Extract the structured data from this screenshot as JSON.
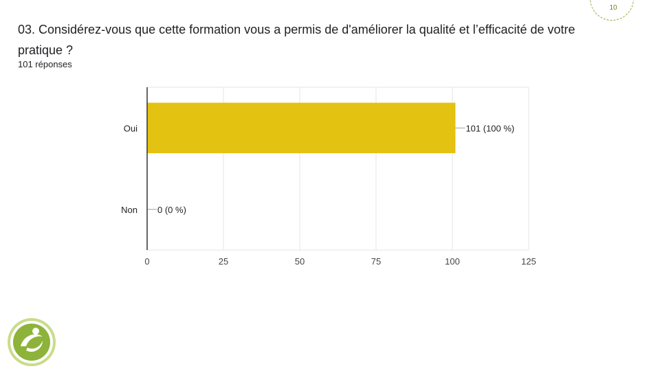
{
  "slide": {
    "page_number": "10",
    "question": "03. Considérez-vous que cette formation vous a permis de d'améliorer la qualité et l’efficacité de votre pratique ?",
    "responses_count": "101 réponses"
  },
  "logo": {
    "icon": "person-swirl-logo-icon",
    "colors": [
      "#8db33a",
      "#c9dc8a"
    ]
  },
  "chart_data": {
    "type": "bar",
    "orientation": "horizontal",
    "categories": [
      "Oui",
      "Non"
    ],
    "values": [
      101,
      0
    ],
    "data_labels": [
      "101 (100 %)",
      "0 (0 %)"
    ],
    "xlim": [
      0,
      125
    ],
    "xticks": [
      0,
      25,
      50,
      75,
      100,
      125
    ],
    "bar_color": "#e3c211",
    "grid": true,
    "legend": "none"
  }
}
